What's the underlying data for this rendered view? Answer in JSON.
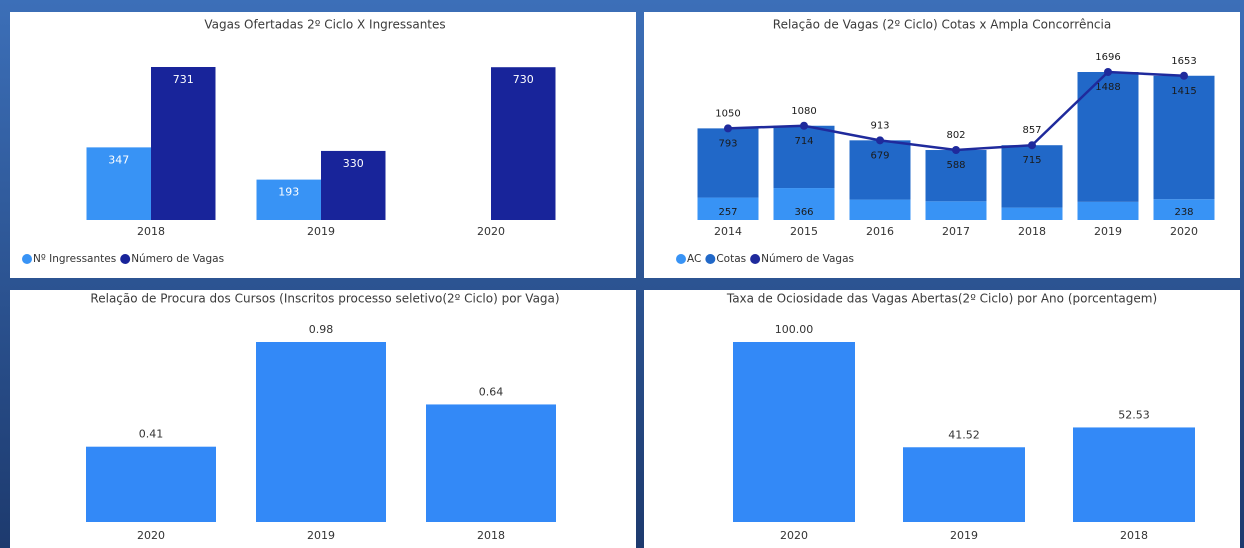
{
  "chart_data": [
    {
      "type": "bar",
      "title": "Vagas Ofertadas 2º Ciclo X Ingressantes",
      "categories": [
        "2018",
        "2019",
        "2020"
      ],
      "series": [
        {
          "name": "Nº Ingressantes",
          "color": "#3893f5",
          "values": [
            347,
            193,
            null
          ]
        },
        {
          "name": "Número de Vagas",
          "color": "#18249a",
          "values": [
            731,
            330,
            730
          ]
        }
      ],
      "legend": "bottom-left"
    },
    {
      "type": "bar",
      "title": "Relação de Vagas (2º Ciclo) Cotas x Ampla Concorrência",
      "stacked": true,
      "categories": [
        "2014",
        "2015",
        "2016",
        "2017",
        "2018",
        "2019",
        "2020"
      ],
      "series": [
        {
          "name": "AC",
          "color": "#3893f5",
          "values": [
            257,
            366,
            234,
            214,
            142,
            208,
            238
          ],
          "value_labels": [
            "257",
            "366",
            null,
            null,
            null,
            null,
            "238"
          ]
        },
        {
          "name": "Cotas",
          "color": "#2168c8",
          "values": [
            793,
            714,
            679,
            588,
            715,
            1488,
            1415
          ]
        },
        {
          "name": "Número de Vagas",
          "color": "#1f2a9c",
          "type": "line",
          "values": [
            1050,
            1080,
            913,
            802,
            857,
            1696,
            1653
          ]
        }
      ],
      "legend": "bottom-left"
    },
    {
      "type": "bar",
      "title": "Relação de Procura dos Cursos (Inscritos processo seletivo(2º Ciclo) por Vaga)",
      "categories": [
        "2020",
        "2019",
        "2018"
      ],
      "values": [
        0.41,
        0.98,
        0.64
      ],
      "color": "#3389f7"
    },
    {
      "type": "bar",
      "title": "Taxa de Ociosidade das Vagas Abertas(2º Ciclo) por Ano (porcentagem)",
      "categories": [
        "2020",
        "2019",
        "2018"
      ],
      "values": [
        100,
        41.52,
        52.53
      ],
      "value_labels": [
        "100.00",
        "41.52",
        "52.53"
      ],
      "color": "#3389f7"
    }
  ]
}
